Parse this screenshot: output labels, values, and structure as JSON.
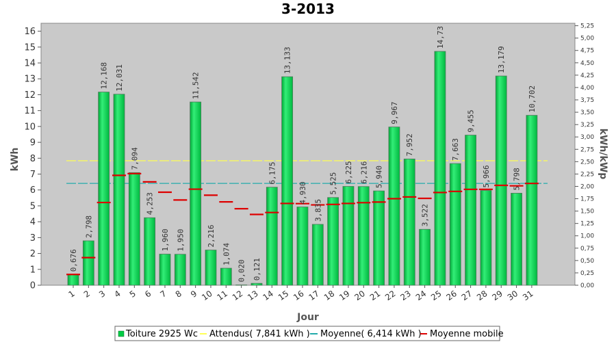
{
  "chart_data": {
    "type": "bar",
    "title": "3-2013",
    "xlabel": "Jour",
    "ylabel": "kWh",
    "ylabel_right": "kWh/kWp",
    "ylim": [
      0,
      16.5
    ],
    "ylim_right": [
      0,
      5.3
    ],
    "yticks": [
      0,
      1,
      2,
      3,
      4,
      5,
      6,
      7,
      8,
      9,
      10,
      11,
      12,
      13,
      14,
      15,
      16
    ],
    "yticks_right": [
      "0,00",
      "0,25",
      "0,50",
      "0,75",
      "1,00",
      "1,25",
      "1,50",
      "1,75",
      "2,00",
      "2,25",
      "2,50",
      "2,75",
      "3,00",
      "3,25",
      "3,50",
      "3,75",
      "4,00",
      "4,25",
      "4,50",
      "4,75",
      "5,00",
      "5,25"
    ],
    "categories": [
      "1",
      "2",
      "3",
      "4",
      "5",
      "6",
      "7",
      "8",
      "9",
      "10",
      "11",
      "12",
      "13",
      "14",
      "15",
      "16",
      "17",
      "18",
      "19",
      "20",
      "21",
      "22",
      "23",
      "24",
      "25",
      "26",
      "27",
      "28",
      "29",
      "30",
      "31"
    ],
    "series": [
      {
        "name": "Toiture 2925 Wc",
        "type": "bar",
        "color": "#00cc44",
        "values": [
          0.676,
          2.798,
          12.168,
          12.031,
          7.094,
          4.253,
          1.96,
          1.95,
          11.542,
          2.216,
          1.074,
          0.02,
          0.121,
          6.175,
          13.133,
          4.93,
          3.835,
          5.525,
          6.225,
          6.216,
          5.94,
          9.967,
          7.952,
          3.522,
          14.73,
          7.663,
          9.455,
          5.966,
          13.179,
          5.798,
          10.702
        ],
        "labels": [
          "0,676",
          "2,798",
          "12,168",
          "12,031",
          "7,094",
          "4,253",
          "1,960",
          "1,950",
          "11,542",
          "2,216",
          "1,074",
          "0,020",
          "0,121",
          "6,175",
          "13,133",
          "4,930",
          "3,835",
          "5,525",
          "6,225",
          "6,216",
          "5,940",
          "9,967",
          "7,952",
          "3,522",
          "14,73",
          "7,663",
          "9,455",
          "5,966",
          "13,179",
          "5,798",
          "10,702"
        ]
      },
      {
        "name": "Attendus( 7,841 kWh )",
        "type": "line",
        "color": "#ffff55",
        "value": 7.841
      },
      {
        "name": "Moyenne( 6,414 kWh )",
        "type": "line",
        "color": "#22aaaa",
        "value": 6.414
      },
      {
        "name": "Moyenne mobile",
        "type": "step",
        "color": "#dd0000",
        "values": [
          0.68,
          1.74,
          5.21,
          6.92,
          7.03,
          6.51,
          5.86,
          5.37,
          6.05,
          5.67,
          5.25,
          4.82,
          4.46,
          4.58,
          5.15,
          5.14,
          5.06,
          5.09,
          5.15,
          5.2,
          5.24,
          5.45,
          5.56,
          5.47,
          5.84,
          5.91,
          6.04,
          6.04,
          6.29,
          6.26,
          6.41
        ]
      }
    ],
    "grid": false,
    "legend_position": "bottom"
  }
}
